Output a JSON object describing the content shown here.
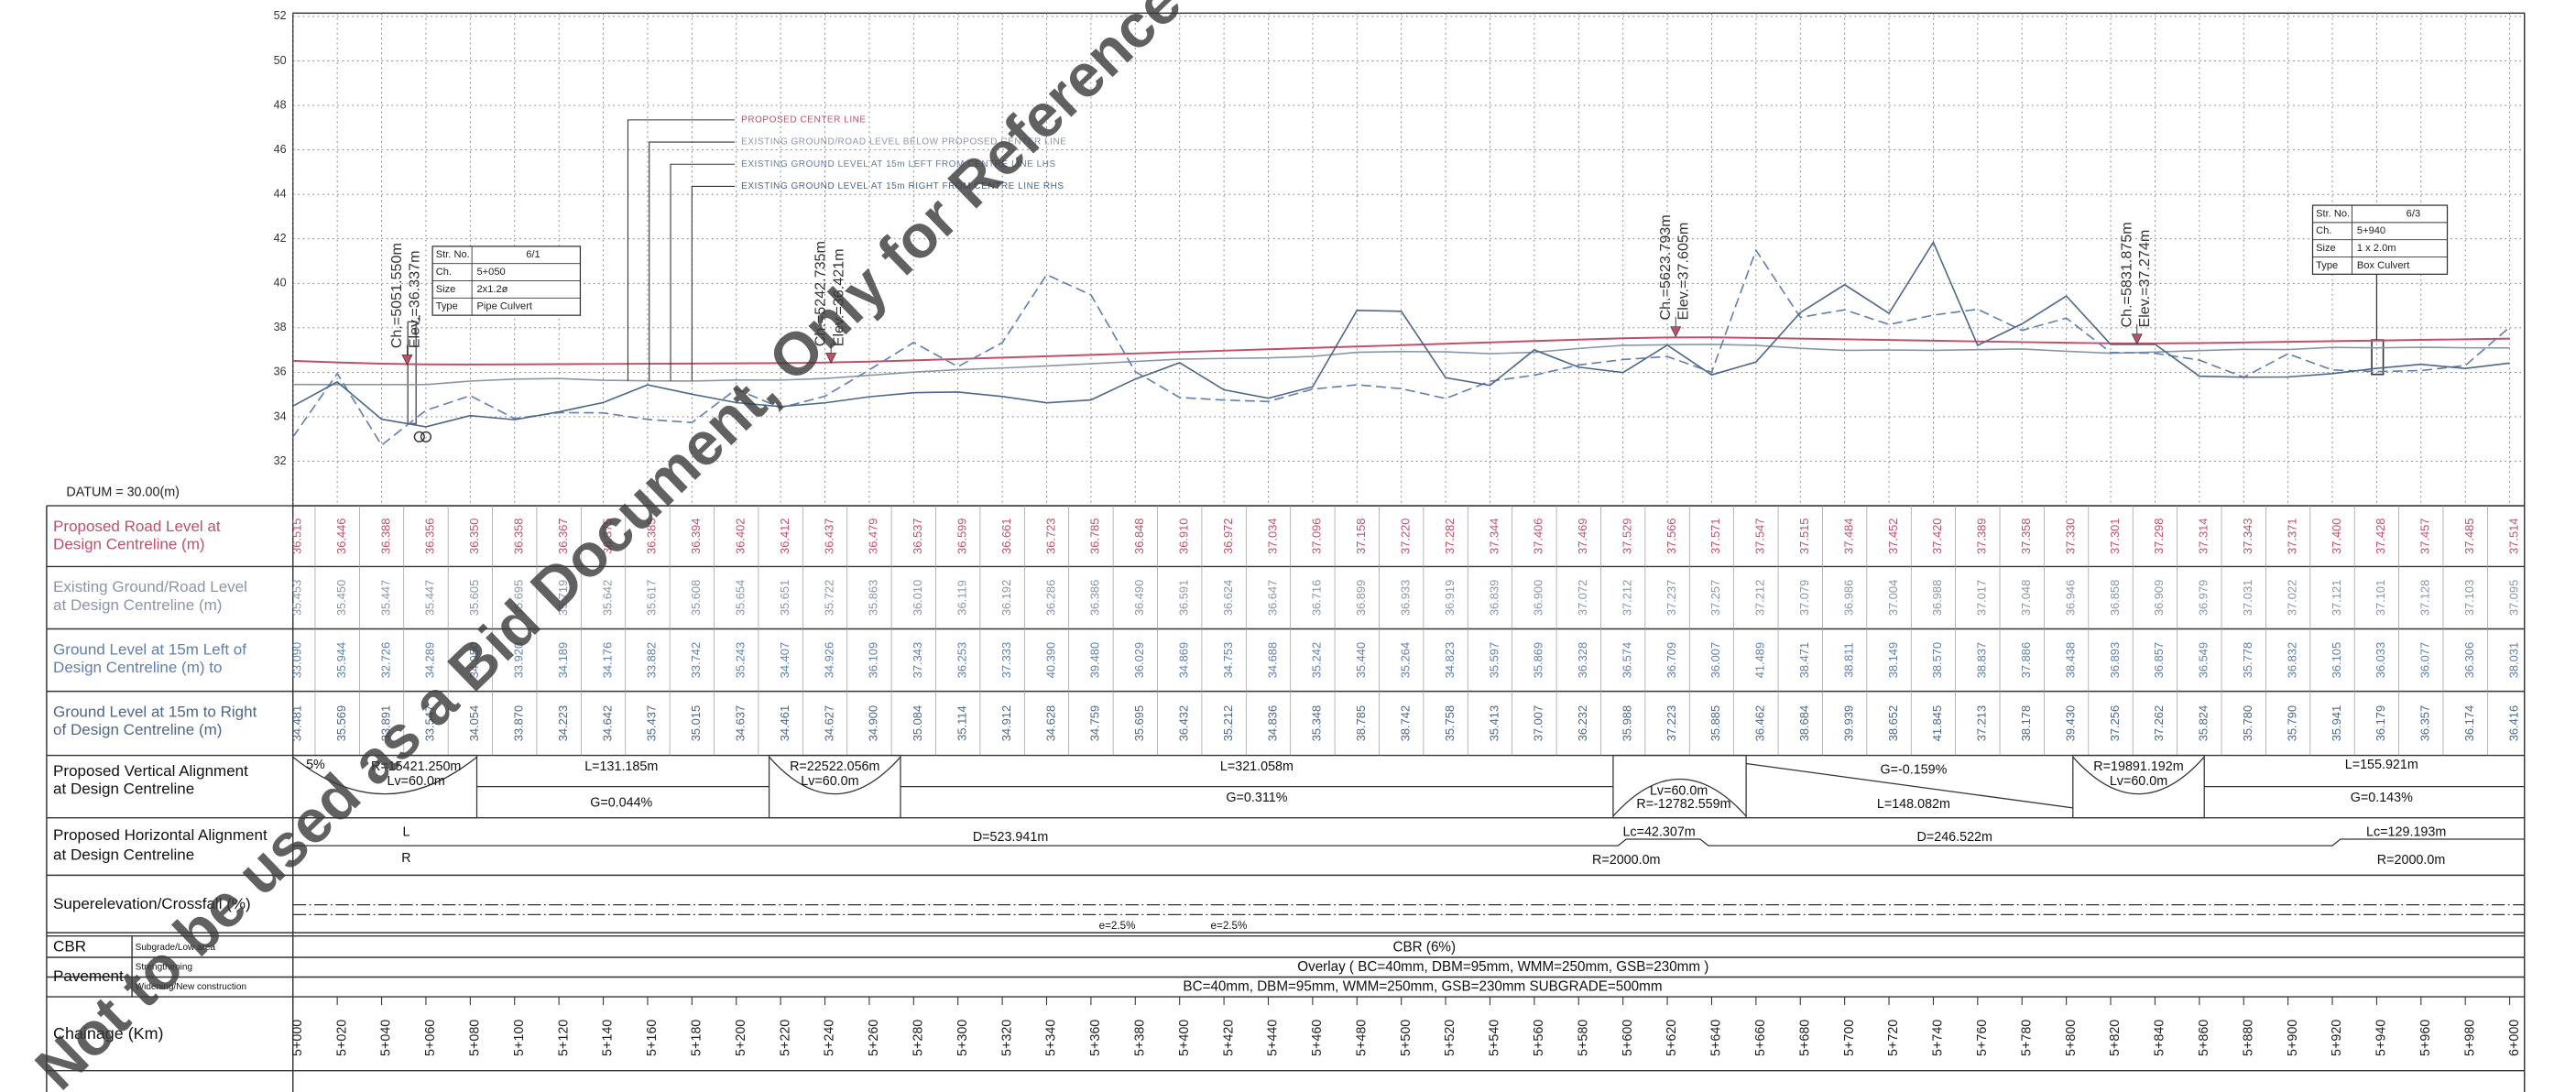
{
  "chart_data": {
    "type": "line",
    "datum": "DATUM = 30.00(m)",
    "xlim": [
      5000,
      6000
    ],
    "ylim": [
      30,
      52
    ],
    "yticks": [
      32,
      34,
      36,
      38,
      40,
      42,
      44,
      46,
      48,
      50,
      52
    ],
    "grid": true,
    "x": [
      5000,
      5020,
      5040,
      5060,
      5080,
      5100,
      5120,
      5140,
      5160,
      5180,
      5200,
      5220,
      5240,
      5260,
      5280,
      5300,
      5320,
      5340,
      5360,
      5380,
      5400,
      5420,
      5440,
      5460,
      5480,
      5500,
      5520,
      5540,
      5560,
      5580,
      5600,
      5620,
      5640,
      5660,
      5680,
      5700,
      5720,
      5740,
      5760,
      5780,
      5800,
      5820,
      5840,
      5860,
      5880,
      5900,
      5920,
      5940,
      5960,
      5980,
      6000
    ],
    "xticks": [
      {
        "value": 5000,
        "label": "5+000"
      },
      {
        "value": 5020,
        "label": "5+020"
      },
      {
        "value": 5040,
        "label": "5+040"
      },
      {
        "value": 5060,
        "label": "5+060"
      },
      {
        "value": 5080,
        "label": "5+080"
      },
      {
        "value": 5100,
        "label": "5+100"
      },
      {
        "value": 5120,
        "label": "5+120"
      },
      {
        "value": 5140,
        "label": "5+140"
      },
      {
        "value": 5160,
        "label": "5+160"
      },
      {
        "value": 5180,
        "label": "5+180"
      },
      {
        "value": 5200,
        "label": "5+200"
      },
      {
        "value": 5220,
        "label": "5+220"
      },
      {
        "value": 5240,
        "label": "5+240"
      },
      {
        "value": 5260,
        "label": "5+260"
      },
      {
        "value": 5280,
        "label": "5+280"
      },
      {
        "value": 5300,
        "label": "5+300"
      },
      {
        "value": 5320,
        "label": "5+320"
      },
      {
        "value": 5340,
        "label": "5+340"
      },
      {
        "value": 5360,
        "label": "5+360"
      },
      {
        "value": 5380,
        "label": "5+380"
      },
      {
        "value": 5400,
        "label": "5+400"
      },
      {
        "value": 5420,
        "label": "5+420"
      },
      {
        "value": 5440,
        "label": "5+440"
      },
      {
        "value": 5460,
        "label": "5+460"
      },
      {
        "value": 5480,
        "label": "5+480"
      },
      {
        "value": 5500,
        "label": "5+500"
      },
      {
        "value": 5520,
        "label": "5+520"
      },
      {
        "value": 5540,
        "label": "5+540"
      },
      {
        "value": 5560,
        "label": "5+560"
      },
      {
        "value": 5580,
        "label": "5+580"
      },
      {
        "value": 5600,
        "label": "5+600"
      },
      {
        "value": 5620,
        "label": "5+620"
      },
      {
        "value": 5640,
        "label": "5+640"
      },
      {
        "value": 5660,
        "label": "5+660"
      },
      {
        "value": 5680,
        "label": "5+680"
      },
      {
        "value": 5700,
        "label": "5+700"
      },
      {
        "value": 5720,
        "label": "5+720"
      },
      {
        "value": 5740,
        "label": "5+740"
      },
      {
        "value": 5760,
        "label": "5+760"
      },
      {
        "value": 5780,
        "label": "5+780"
      },
      {
        "value": 5800,
        "label": "5+800"
      },
      {
        "value": 5820,
        "label": "5+820"
      },
      {
        "value": 5840,
        "label": "5+840"
      },
      {
        "value": 5860,
        "label": "5+860"
      },
      {
        "value": 5880,
        "label": "5+880"
      },
      {
        "value": 5900,
        "label": "5+900"
      },
      {
        "value": 5920,
        "label": "5+920"
      },
      {
        "value": 5940,
        "label": "5+940"
      },
      {
        "value": 5960,
        "label": "5+960"
      },
      {
        "value": 5980,
        "label": "5+980"
      },
      {
        "value": 6000,
        "label": "6+000"
      }
    ],
    "series": [
      {
        "name": "PROPOSED CENTER LINE",
        "row_label": [
          "Proposed Road Level at",
          "Design Centreline (m)"
        ],
        "color": "#c0506a",
        "dashed": false,
        "values": [
          36.515,
          36.446,
          36.388,
          36.356,
          36.35,
          36.358,
          36.367,
          36.375,
          36.385,
          36.394,
          36.402,
          36.412,
          36.437,
          36.479,
          36.537,
          36.599,
          36.661,
          36.723,
          36.785,
          36.848,
          36.91,
          36.972,
          37.034,
          37.096,
          37.158,
          37.22,
          37.282,
          37.344,
          37.406,
          37.469,
          37.529,
          37.566,
          37.571,
          37.547,
          37.515,
          37.484,
          37.452,
          37.42,
          37.389,
          37.358,
          37.33,
          37.301,
          37.298,
          37.314,
          37.343,
          37.371,
          37.4,
          37.428,
          37.457,
          37.485,
          37.514
        ],
        "value_labels": [
          "36.515",
          "36.446",
          "36.388",
          "36.356",
          "36.350",
          "36.358",
          "36.367",
          "36.375",
          "36.385",
          "36.394",
          "36.402",
          "36.412",
          "36.437",
          "36.479",
          "36.537",
          "36.599",
          "36.661",
          "36.723",
          "36.785",
          "36.848",
          "36.910",
          "36.972",
          "37.034",
          "37.096",
          "37.158",
          "37.220",
          "37.282",
          "37.344",
          "37.406",
          "37.469",
          "37.529",
          "37.566",
          "37.571",
          "37.547",
          "37.515",
          "37.484",
          "37.452",
          "37.420",
          "37.389",
          "37.358",
          "37.330",
          "37.301",
          "37.298",
          "37.314",
          "37.343",
          "37.371",
          "37.400",
          "37.428",
          "37.457",
          "37.485",
          "37.514"
        ]
      },
      {
        "name": "EXISTING GROUND/ROAD LEVEL BELOW PROPOSED CENTER LINE",
        "row_label": [
          "Existing Ground/Road Level",
          "at Design Centreline (m)"
        ],
        "color": "#8a96a8",
        "dashed": false,
        "values": [
          35.453,
          35.45,
          35.447,
          35.447,
          35.605,
          35.695,
          35.719,
          35.642,
          35.617,
          35.608,
          35.654,
          35.651,
          35.722,
          35.863,
          36.01,
          36.119,
          36.192,
          36.286,
          36.386,
          36.49,
          36.591,
          36.624,
          36.647,
          36.716,
          36.899,
          36.933,
          36.919,
          36.839,
          36.9,
          37.072,
          37.212,
          37.237,
          37.257,
          37.212,
          37.079,
          36.986,
          37.004,
          36.988,
          37.017,
          37.048,
          36.946,
          36.858,
          36.909,
          36.979,
          37.031,
          37.022,
          37.121,
          37.101,
          37.128,
          37.103,
          37.095
        ],
        "value_labels": [
          "35.453",
          "35.450",
          "35.447",
          "35.447",
          "35.605",
          "35.695",
          "35.719",
          "35.642",
          "35.617",
          "35.608",
          "35.654",
          "35.651",
          "35.722",
          "35.863",
          "36.010",
          "36.119",
          "36.192",
          "36.286",
          "36.386",
          "36.490",
          "36.591",
          "36.624",
          "36.647",
          "36.716",
          "36.899",
          "36.933",
          "36.919",
          "36.839",
          "36.900",
          "37.072",
          "37.212",
          "37.237",
          "37.257",
          "37.212",
          "37.079",
          "36.986",
          "37.004",
          "36.988",
          "37.017",
          "37.048",
          "36.946",
          "36.858",
          "36.909",
          "36.979",
          "37.031",
          "37.022",
          "37.121",
          "37.101",
          "37.128",
          "37.103",
          "37.095"
        ]
      },
      {
        "name": "EXISTING GROUND LEVEL AT 15m LEFT FROM CENTRE LINE LHS",
        "row_label": [
          "Ground Level at 15m Left of",
          "Design Centreline (m) to"
        ],
        "color": "#5f7fb0",
        "dashed": true,
        "values": [
          33.09,
          35.944,
          32.726,
          34.289,
          34.95,
          33.92,
          34.189,
          34.176,
          33.882,
          33.742,
          35.243,
          34.407,
          34.926,
          36.109,
          37.343,
          36.253,
          37.333,
          40.39,
          39.48,
          36.029,
          34.869,
          34.753,
          34.688,
          35.242,
          35.44,
          35.264,
          34.823,
          35.597,
          35.869,
          36.328,
          36.574,
          36.709,
          36.007,
          41.489,
          38.471,
          38.811,
          38.149,
          38.57,
          38.837,
          37.886,
          38.438,
          36.893,
          36.857,
          36.549,
          35.778,
          36.832,
          36.105,
          36.033,
          36.077,
          36.306,
          38.031
        ],
        "value_labels": [
          "33.090",
          "35.944",
          "32.726",
          "34.289",
          "34.950",
          "33.920",
          "34.189",
          "34.176",
          "33.882",
          "33.742",
          "35.243",
          "34.407",
          "34.926",
          "36.109",
          "37.343",
          "36.253",
          "37.333",
          "40.390",
          "39.480",
          "36.029",
          "34.869",
          "34.753",
          "34.688",
          "35.242",
          "35.440",
          "35.264",
          "34.823",
          "35.597",
          "35.869",
          "36.328",
          "36.574",
          "36.709",
          "36.007",
          "41.489",
          "38.471",
          "38.811",
          "38.149",
          "38.570",
          "38.837",
          "37.886",
          "38.438",
          "36.893",
          "36.857",
          "36.549",
          "35.778",
          "36.832",
          "36.105",
          "36.033",
          "36.077",
          "36.306",
          "38.031"
        ]
      },
      {
        "name": "EXISTING GROUND LEVEL AT 15m RIGHT FROM CENTRE LINE RHS",
        "row_label": [
          "Ground Level at 15m to Right",
          "of Design Centreline (m)"
        ],
        "color": "#4d6788",
        "dashed": false,
        "values": [
          34.481,
          35.569,
          33.891,
          33.547,
          34.054,
          33.87,
          34.223,
          34.642,
          35.437,
          35.015,
          34.637,
          34.461,
          34.627,
          34.9,
          35.084,
          35.114,
          34.912,
          34.628,
          34.759,
          35.695,
          36.432,
          35.212,
          34.836,
          35.348,
          38.785,
          38.742,
          35.758,
          35.413,
          37.007,
          36.232,
          35.988,
          37.223,
          35.885,
          36.462,
          38.684,
          39.939,
          38.652,
          41.845,
          37.213,
          38.178,
          39.43,
          37.256,
          37.262,
          35.824,
          35.78,
          35.79,
          35.941,
          36.179,
          36.357,
          36.174,
          36.416
        ],
        "value_labels": [
          "34.481",
          "35.569",
          "33.891",
          "33.547",
          "34.054",
          "33.870",
          "34.223",
          "34.642",
          "35.437",
          "35.015",
          "34.637",
          "34.461",
          "34.627",
          "34.900",
          "35.084",
          "35.114",
          "34.912",
          "34.628",
          "34.759",
          "35.695",
          "36.432",
          "35.212",
          "34.836",
          "35.348",
          "38.785",
          "38.742",
          "35.758",
          "35.413",
          "37.007",
          "36.232",
          "35.988",
          "37.223",
          "35.885",
          "36.462",
          "38.684",
          "39.939",
          "38.652",
          "41.845",
          "37.213",
          "38.178",
          "39.430",
          "37.256",
          "37.262",
          "35.824",
          "35.780",
          "35.790",
          "35.941",
          "36.179",
          "36.357",
          "36.174",
          "36.416"
        ]
      }
    ],
    "markers": [
      {
        "ch": 5051.55,
        "elev": 36.337,
        "labels": [
          "Ch.=5051.550m",
          "Elev.=36.337m"
        ]
      },
      {
        "ch": 5242.735,
        "elev": 36.421,
        "labels": [
          "Ch.=5242.735m",
          "Elev.=36.421m"
        ]
      },
      {
        "ch": 5623.793,
        "elev": 37.605,
        "labels": [
          "Ch.=5623.793m",
          "Elev.=37.605m"
        ]
      },
      {
        "ch": 5831.875,
        "elev": 37.274,
        "labels": [
          "Ch.=5831.875m",
          "Elev.=37.274m"
        ]
      }
    ],
    "structures": [
      {
        "rows": [
          [
            "Str. No.",
            "6/1"
          ],
          [
            "Ch.",
            "5+050"
          ],
          [
            "Size",
            "2x1.2ø"
          ],
          [
            "Type",
            "Pipe Culvert"
          ]
        ]
      },
      {
        "rows": [
          [
            "Str. No.",
            "6/3"
          ],
          [
            "Ch.",
            "5+940"
          ],
          [
            "Size",
            "1 x 2.0m"
          ],
          [
            "Type",
            "Box Culvert"
          ]
        ]
      }
    ]
  },
  "profile_table": {
    "vertical_alignment": {
      "label": [
        "Proposed Vertical Alignment",
        "at Design Centreline"
      ],
      "texts": [
        "5%",
        "R=15421.250m",
        "Lv=60.0m",
        "L=131.185m",
        "G=0.044%",
        "R=22522.056m",
        "Lv=60.0m",
        "L=321.058m",
        "G=0.311%",
        "Lv=60.0m",
        "R=-12782.559m",
        "G=-0.159%",
        "L=148.082m",
        "R=19891.192m",
        "Lv=60.0m",
        "L=155.921m",
        "G=0.143%"
      ]
    },
    "horizontal_alignment": {
      "label": [
        "Proposed Horizontal Alignment",
        "at Design Centreline"
      ],
      "texts": [
        "L",
        "R",
        "D=523.941m",
        "Lc=42.307m",
        "R=2000.0m",
        "D=246.522m",
        "Lc=129.193m",
        "R=2000.0m"
      ]
    },
    "superelevation": {
      "label": "Superelevation/Crossfall (%)",
      "texts": [
        "e=2.5%",
        "e=2.5%"
      ]
    },
    "cbr": {
      "label": "CBR",
      "sub_label": "Subgrade/Low area",
      "text": "CBR (6%)"
    },
    "pavement": {
      "label": "Pavement",
      "rows": [
        {
          "sub_label": "Strengthening",
          "text": "Overlay ( BC=40mm, DBM=95mm, WMM=250mm, GSB=230mm )"
        },
        {
          "sub_label": "Widening/New construction",
          "text": "BC=40mm, DBM=95mm, WMM=250mm, GSB=230mm SUBGRADE=500mm"
        }
      ]
    },
    "chainage": {
      "label": "Chainage (Km)"
    }
  },
  "watermark": "Not to be used as a Bid Document, Only for Reference"
}
